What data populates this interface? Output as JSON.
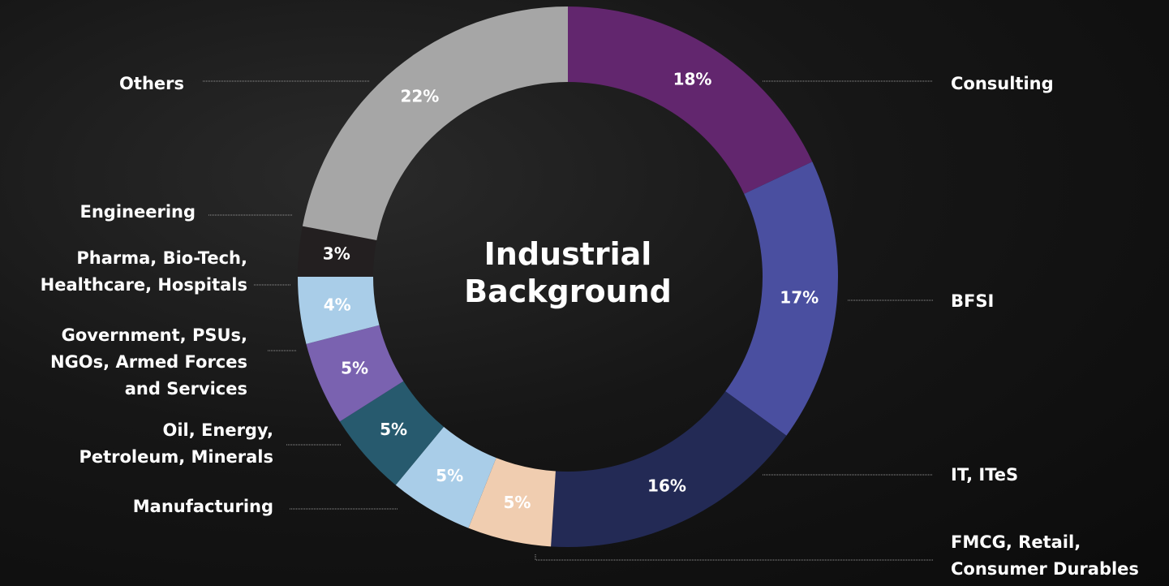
{
  "chart_data": {
    "type": "donut",
    "title": "Industrial\nBackground",
    "categories": [
      "Consulting",
      "BFSI",
      "IT, ITeS",
      "FMCG, Retail,\nConsumer Durables",
      "Manufacturing",
      "Oil, Energy,\nPetroleum, Minerals",
      "Government, PSUs,\nNGOs, Armed Forces\nand Services",
      "Pharma, Bio-Tech,\nHealthcare, Hospitals",
      "Engineering",
      "Others"
    ],
    "values": [
      18,
      17,
      16,
      5,
      5,
      5,
      5,
      4,
      3,
      22
    ],
    "value_labels": [
      "18%",
      "17%",
      "16%",
      "5%",
      "5%",
      "5%",
      "5%",
      "4%",
      "3%",
      "22%"
    ],
    "colors": [
      "#62266e",
      "#4a4fa0",
      "#232a55",
      "#f0cdb0",
      "#a9cde8",
      "#275a6e",
      "#7a62b0",
      "#a9cde8",
      "#231f20",
      "#a6a6a6"
    ]
  }
}
